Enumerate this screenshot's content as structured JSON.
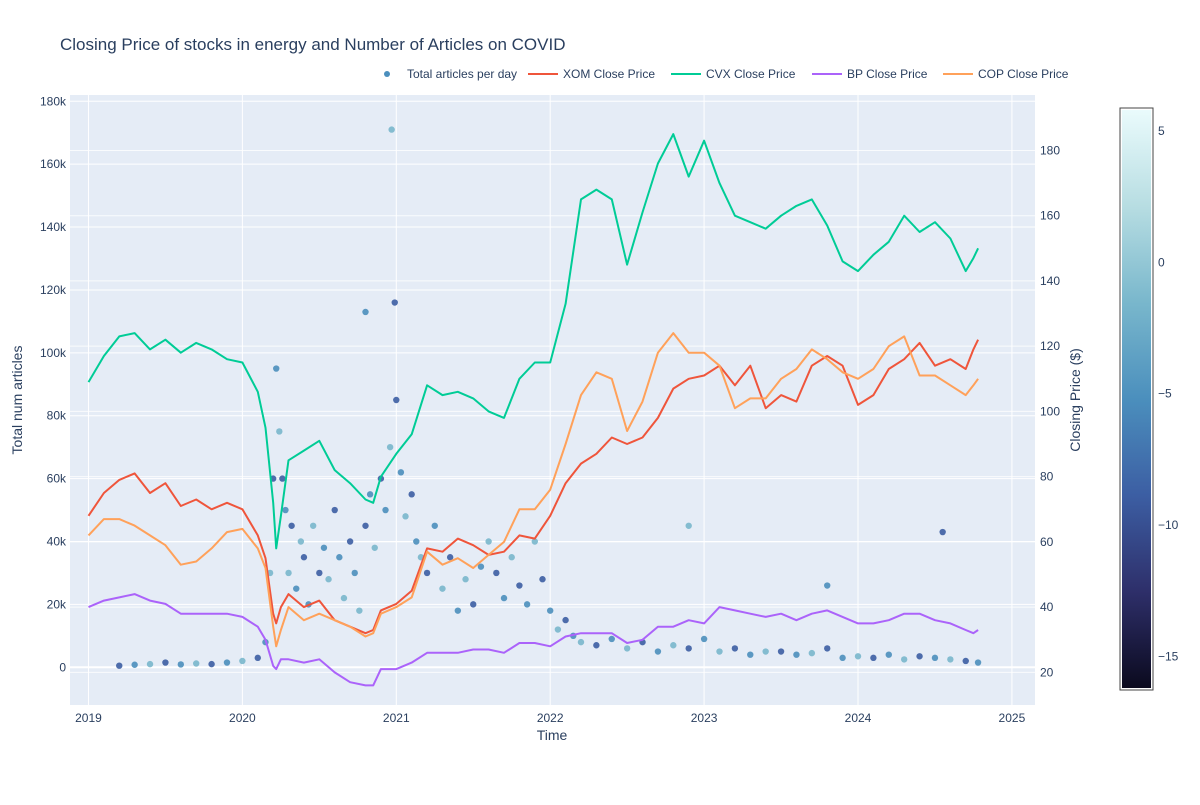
{
  "chart_data": {
    "type": "line",
    "title": "Closing Price of stocks in energy and Number of Articles on COVID",
    "xlabel": "Time",
    "ylabel": "Total num articles",
    "y2label": "Closing Price ($)",
    "xlim": [
      2018.88,
      2025.15
    ],
    "ylim": [
      -12000,
      182000
    ],
    "y2lim": [
      10,
      197
    ],
    "x_ticks": [
      2019,
      2020,
      2021,
      2022,
      2023,
      2024,
      2025
    ],
    "x_tick_labels": [
      "2019",
      "2020",
      "2021",
      "2022",
      "2023",
      "2024",
      "2025"
    ],
    "y_ticks": [
      0,
      20000,
      40000,
      60000,
      80000,
      100000,
      120000,
      140000,
      160000,
      180000
    ],
    "y_tick_labels": [
      "0",
      "20k",
      "40k",
      "60k",
      "80k",
      "100k",
      "120k",
      "140k",
      "160k",
      "180k"
    ],
    "y2_ticks": [
      20,
      40,
      60,
      80,
      100,
      120,
      140,
      160,
      180
    ],
    "y2_tick_labels": [
      "20",
      "40",
      "60",
      "80",
      "100",
      "120",
      "140",
      "160",
      "180"
    ],
    "grid": true,
    "legend_position": "top-right",
    "background": "#e5ecf6",
    "colorbar": {
      "range": [
        -16.2,
        5.8
      ],
      "ticks": [
        5,
        0,
        -5,
        -10,
        -15
      ],
      "tick_labels": [
        "5",
        "0",
        "−5",
        "−10",
        "−15"
      ],
      "colors": [
        "#0b0a1e",
        "#2e2f6a",
        "#3c5ea3",
        "#4b8fbd",
        "#79b7cc",
        "#b7dde2",
        "#eafbfc"
      ]
    },
    "series": [
      {
        "name": "XOM Close Price",
        "axis": "y2",
        "color": "#ef553b",
        "x": [
          2019.0,
          2019.1,
          2019.2,
          2019.3,
          2019.4,
          2019.5,
          2019.6,
          2019.7,
          2019.8,
          2019.9,
          2020.0,
          2020.1,
          2020.15,
          2020.2,
          2020.22,
          2020.25,
          2020.3,
          2020.4,
          2020.5,
          2020.6,
          2020.7,
          2020.8,
          2020.85,
          2020.9,
          2021.0,
          2021.1,
          2021.2,
          2021.3,
          2021.4,
          2021.5,
          2021.6,
          2021.7,
          2021.8,
          2021.9,
          2022.0,
          2022.1,
          2022.2,
          2022.3,
          2022.4,
          2022.5,
          2022.6,
          2022.7,
          2022.8,
          2022.9,
          2023.0,
          2023.1,
          2023.2,
          2023.3,
          2023.4,
          2023.5,
          2023.6,
          2023.7,
          2023.8,
          2023.9,
          2024.0,
          2024.1,
          2024.2,
          2024.3,
          2024.4,
          2024.5,
          2024.6,
          2024.7,
          2024.75,
          2024.78
        ],
        "values": [
          68,
          75,
          79,
          81,
          75,
          78,
          71,
          73,
          70,
          72,
          70,
          62,
          55,
          38,
          35,
          40,
          44,
          40,
          42,
          36,
          34,
          32,
          33,
          39,
          41,
          45,
          58,
          57,
          61,
          59,
          56,
          57,
          62,
          61,
          68,
          78,
          84,
          87,
          92,
          90,
          92,
          98,
          107,
          110,
          111,
          114,
          108,
          114,
          101,
          105,
          103,
          114,
          117,
          114,
          102,
          105,
          113,
          116,
          121,
          114,
          116,
          113,
          119,
          122
        ]
      },
      {
        "name": "CVX Close Price",
        "axis": "y2",
        "color": "#00cc96",
        "x": [
          2019.0,
          2019.1,
          2019.2,
          2019.3,
          2019.4,
          2019.5,
          2019.6,
          2019.7,
          2019.8,
          2019.9,
          2020.0,
          2020.1,
          2020.15,
          2020.2,
          2020.22,
          2020.25,
          2020.3,
          2020.4,
          2020.5,
          2020.6,
          2020.7,
          2020.8,
          2020.85,
          2020.9,
          2021.0,
          2021.1,
          2021.2,
          2021.3,
          2021.4,
          2021.5,
          2021.6,
          2021.7,
          2021.8,
          2021.9,
          2022.0,
          2022.1,
          2022.2,
          2022.3,
          2022.4,
          2022.5,
          2022.6,
          2022.7,
          2022.8,
          2022.9,
          2023.0,
          2023.1,
          2023.2,
          2023.3,
          2023.4,
          2023.5,
          2023.6,
          2023.7,
          2023.8,
          2023.9,
          2024.0,
          2024.1,
          2024.2,
          2024.3,
          2024.4,
          2024.5,
          2024.6,
          2024.7,
          2024.75,
          2024.78
        ],
        "values": [
          109,
          117,
          123,
          124,
          119,
          122,
          118,
          121,
          119,
          116,
          115,
          106,
          95,
          72,
          58,
          68,
          85,
          88,
          91,
          82,
          78,
          73,
          72,
          80,
          87,
          93,
          108,
          105,
          106,
          104,
          100,
          98,
          110,
          115,
          115,
          133,
          165,
          168,
          165,
          145,
          161,
          176,
          185,
          172,
          183,
          170,
          160,
          158,
          156,
          160,
          163,
          165,
          157,
          146,
          143,
          148,
          152,
          160,
          155,
          158,
          153,
          143,
          147,
          150
        ]
      },
      {
        "name": "BP Close Price",
        "axis": "y2",
        "color": "#ab63fa",
        "x": [
          2019.0,
          2019.1,
          2019.2,
          2019.3,
          2019.4,
          2019.5,
          2019.6,
          2019.7,
          2019.8,
          2019.9,
          2020.0,
          2020.1,
          2020.15,
          2020.2,
          2020.22,
          2020.25,
          2020.3,
          2020.4,
          2020.5,
          2020.6,
          2020.7,
          2020.8,
          2020.85,
          2020.9,
          2021.0,
          2021.1,
          2021.2,
          2021.3,
          2021.4,
          2021.5,
          2021.6,
          2021.7,
          2021.8,
          2021.9,
          2022.0,
          2022.1,
          2022.2,
          2022.3,
          2022.4,
          2022.5,
          2022.6,
          2022.7,
          2022.8,
          2022.9,
          2023.0,
          2023.1,
          2023.2,
          2023.3,
          2023.4,
          2023.5,
          2023.6,
          2023.7,
          2023.8,
          2023.9,
          2024.0,
          2024.1,
          2024.2,
          2024.3,
          2024.4,
          2024.5,
          2024.6,
          2024.7,
          2024.75,
          2024.78
        ],
        "values": [
          40,
          42,
          43,
          44,
          42,
          41,
          38,
          38,
          38,
          38,
          37,
          34,
          30,
          22,
          21,
          24,
          24,
          23,
          24,
          20,
          17,
          16,
          16,
          21,
          21,
          23,
          26,
          26,
          26,
          27,
          27,
          26,
          29,
          29,
          28,
          31,
          32,
          32,
          32,
          29,
          30,
          34,
          34,
          36,
          35,
          40,
          39,
          38,
          37,
          38,
          36,
          38,
          39,
          37,
          35,
          35,
          36,
          38,
          38,
          36,
          35,
          33,
          32,
          33
        ]
      },
      {
        "name": "COP Close Price",
        "axis": "y2",
        "color": "#ffa15a",
        "x": [
          2019.0,
          2019.1,
          2019.2,
          2019.3,
          2019.4,
          2019.5,
          2019.6,
          2019.7,
          2019.8,
          2019.9,
          2020.0,
          2020.1,
          2020.15,
          2020.2,
          2020.22,
          2020.25,
          2020.3,
          2020.4,
          2020.5,
          2020.6,
          2020.7,
          2020.8,
          2020.85,
          2020.9,
          2021.0,
          2021.1,
          2021.2,
          2021.3,
          2021.4,
          2021.5,
          2021.6,
          2021.7,
          2021.8,
          2021.9,
          2022.0,
          2022.1,
          2022.2,
          2022.3,
          2022.4,
          2022.5,
          2022.6,
          2022.7,
          2022.8,
          2022.9,
          2023.0,
          2023.1,
          2023.2,
          2023.3,
          2023.4,
          2023.5,
          2023.6,
          2023.7,
          2023.8,
          2023.9,
          2024.0,
          2024.1,
          2024.2,
          2024.3,
          2024.4,
          2024.5,
          2024.6,
          2024.7,
          2024.75,
          2024.78
        ],
        "values": [
          62,
          67,
          67,
          65,
          62,
          59,
          53,
          54,
          58,
          63,
          64,
          58,
          52,
          34,
          28,
          33,
          40,
          36,
          38,
          36,
          34,
          31,
          32,
          38,
          40,
          43,
          57,
          53,
          55,
          52,
          56,
          60,
          70,
          70,
          76,
          90,
          105,
          112,
          110,
          94,
          103,
          118,
          124,
          118,
          118,
          114,
          101,
          104,
          104,
          110,
          113,
          119,
          116,
          112,
          110,
          113,
          120,
          123,
          111,
          111,
          108,
          105,
          108,
          110
        ]
      }
    ],
    "scatter": {
      "name": "Total articles per day",
      "axis": "y",
      "color": "#4b8fbd",
      "x": [
        2019.2,
        2019.3,
        2019.4,
        2019.5,
        2019.6,
        2019.7,
        2019.8,
        2019.9,
        2020.0,
        2020.1,
        2020.15,
        2020.18,
        2020.2,
        2020.22,
        2020.24,
        2020.26,
        2020.28,
        2020.3,
        2020.32,
        2020.35,
        2020.38,
        2020.4,
        2020.43,
        2020.46,
        2020.5,
        2020.53,
        2020.56,
        2020.6,
        2020.63,
        2020.66,
        2020.7,
        2020.73,
        2020.76,
        2020.8,
        2020.83,
        2020.86,
        2020.9,
        2020.93,
        2020.96,
        2021.0,
        2021.03,
        2021.06,
        2021.1,
        2021.13,
        2021.16,
        2021.2,
        2021.25,
        2021.3,
        2021.35,
        2021.4,
        2021.45,
        2021.5,
        2021.55,
        2021.6,
        2021.65,
        2021.7,
        2021.75,
        2021.8,
        2021.85,
        2021.9,
        2021.95,
        2022.0,
        2022.05,
        2022.1,
        2022.15,
        2022.2,
        2022.3,
        2022.4,
        2022.5,
        2022.6,
        2022.7,
        2022.8,
        2022.9,
        2023.0,
        2023.1,
        2023.2,
        2023.3,
        2023.4,
        2023.5,
        2023.6,
        2023.7,
        2023.8,
        2023.9,
        2024.0,
        2024.1,
        2024.2,
        2024.3,
        2024.4,
        2024.5,
        2024.6,
        2024.7,
        2024.78,
        2020.97,
        2020.99,
        2020.8,
        2022.9,
        2024.55,
        2023.8
      ],
      "values": [
        500,
        800,
        1000,
        1500,
        900,
        1200,
        1000,
        1500,
        2000,
        3000,
        8000,
        30000,
        60000,
        95000,
        75000,
        60000,
        50000,
        30000,
        45000,
        25000,
        40000,
        35000,
        20000,
        45000,
        30000,
        38000,
        28000,
        50000,
        35000,
        22000,
        40000,
        30000,
        18000,
        45000,
        55000,
        38000,
        60000,
        50000,
        70000,
        85000,
        62000,
        48000,
        55000,
        40000,
        35000,
        30000,
        45000,
        25000,
        35000,
        18000,
        28000,
        20000,
        32000,
        40000,
        30000,
        22000,
        35000,
        26000,
        20000,
        40000,
        28000,
        18000,
        12000,
        15000,
        10000,
        8000,
        7000,
        9000,
        6000,
        8000,
        5000,
        7000,
        6000,
        9000,
        5000,
        6000,
        4000,
        5000,
        5000,
        4000,
        4500,
        6000,
        3000,
        3500,
        3000,
        4000,
        2500,
        3500,
        3000,
        2500,
        2000,
        1500,
        171000,
        116000,
        113000,
        45000,
        43000,
        26000
      ]
    },
    "legend": [
      "Total articles per day",
      "XOM Close Price",
      "CVX Close Price",
      "BP Close Price",
      "COP Close Price"
    ]
  }
}
